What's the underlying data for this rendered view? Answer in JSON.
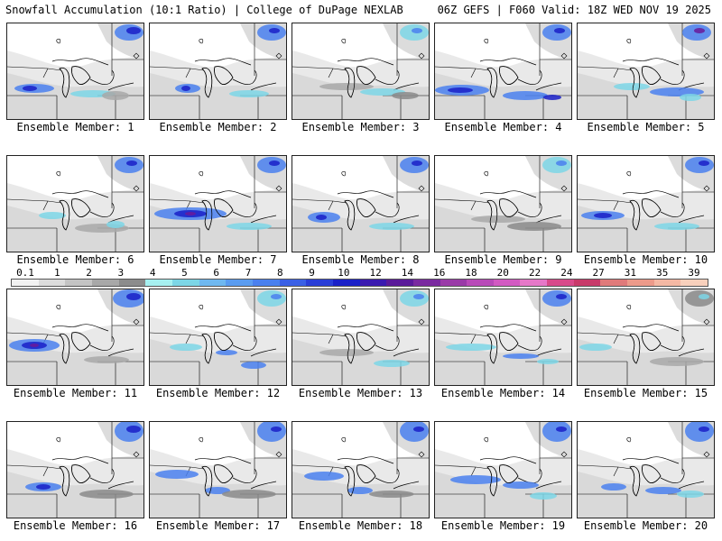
{
  "header": {
    "title_left": "Snowfall Accumulation (10:1 Ratio) | College of DuPage NEXLAB",
    "title_right": "06Z GEFS | F060 Valid: 18Z WED NOV 19 2025"
  },
  "colorbar": {
    "ticks": [
      "0.1",
      "1",
      "2",
      "3",
      "4",
      "5",
      "6",
      "7",
      "8",
      "9",
      "10",
      "12",
      "14",
      "16",
      "18",
      "20",
      "22",
      "24",
      "27",
      "31",
      "35",
      "39"
    ],
    "colors": [
      "#f2f2f2",
      "#dcdcdc",
      "#c4c4c4",
      "#a8a8a8",
      "#8c8c8c",
      "#a6f0f0",
      "#7cd6e6",
      "#6fb8f0",
      "#5a9cf0",
      "#4a80ee",
      "#3a60e6",
      "#2a3ed8",
      "#1a20c8",
      "#3a1ab0",
      "#5a1a9a",
      "#7a2aa0",
      "#9a3aa8",
      "#b84ab8",
      "#d25ac2",
      "#e678c8",
      "#d84a8a",
      "#c83a6a",
      "#e07a7a",
      "#ec9a8a",
      "#f4b8a4",
      "#f8d0bc"
    ]
  },
  "panels": [
    {
      "label": "Ensemble Member: 1"
    },
    {
      "label": "Ensemble Member: 2"
    },
    {
      "label": "Ensemble Member: 3"
    },
    {
      "label": "Ensemble Member: 4"
    },
    {
      "label": "Ensemble Member: 5"
    },
    {
      "label": "Ensemble Member: 6"
    },
    {
      "label": "Ensemble Member: 7"
    },
    {
      "label": "Ensemble Member: 8"
    },
    {
      "label": "Ensemble Member: 9"
    },
    {
      "label": "Ensemble Member: 10"
    },
    {
      "label": "Ensemble Member: 11"
    },
    {
      "label": "Ensemble Member: 12"
    },
    {
      "label": "Ensemble Member: 13"
    },
    {
      "label": "Ensemble Member: 14"
    },
    {
      "label": "Ensemble Member: 15"
    },
    {
      "label": "Ensemble Member: 16"
    },
    {
      "label": "Ensemble Member: 17"
    },
    {
      "label": "Ensemble Member: 18"
    },
    {
      "label": "Ensemble Member: 19"
    },
    {
      "label": "Ensemble Member: 20"
    }
  ]
}
